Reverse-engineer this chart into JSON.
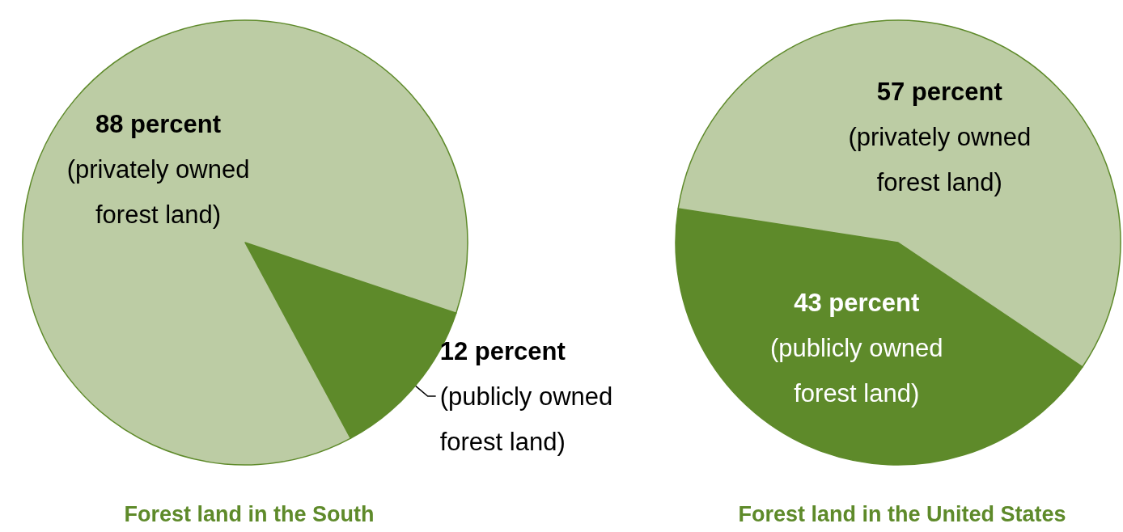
{
  "chart_data": [
    {
      "type": "pie",
      "title": "Forest land in the South",
      "categories": [
        "(publicly owned forest land)",
        "(privately owned forest land)"
      ],
      "values": [
        12,
        88
      ],
      "colors": [
        "#5e8a2a",
        "#bccca4"
      ],
      "value_labels": [
        "12 percent",
        "88 percent"
      ]
    },
    {
      "type": "pie",
      "title": "Forest land in the United States",
      "categories": [
        "(publicly owned forest land)",
        "(privately owned forest land)"
      ],
      "values": [
        43,
        57
      ],
      "colors": [
        "#5e8a2a",
        "#bccca4"
      ],
      "value_labels": [
        "43 percent",
        "57 percent"
      ]
    }
  ]
}
